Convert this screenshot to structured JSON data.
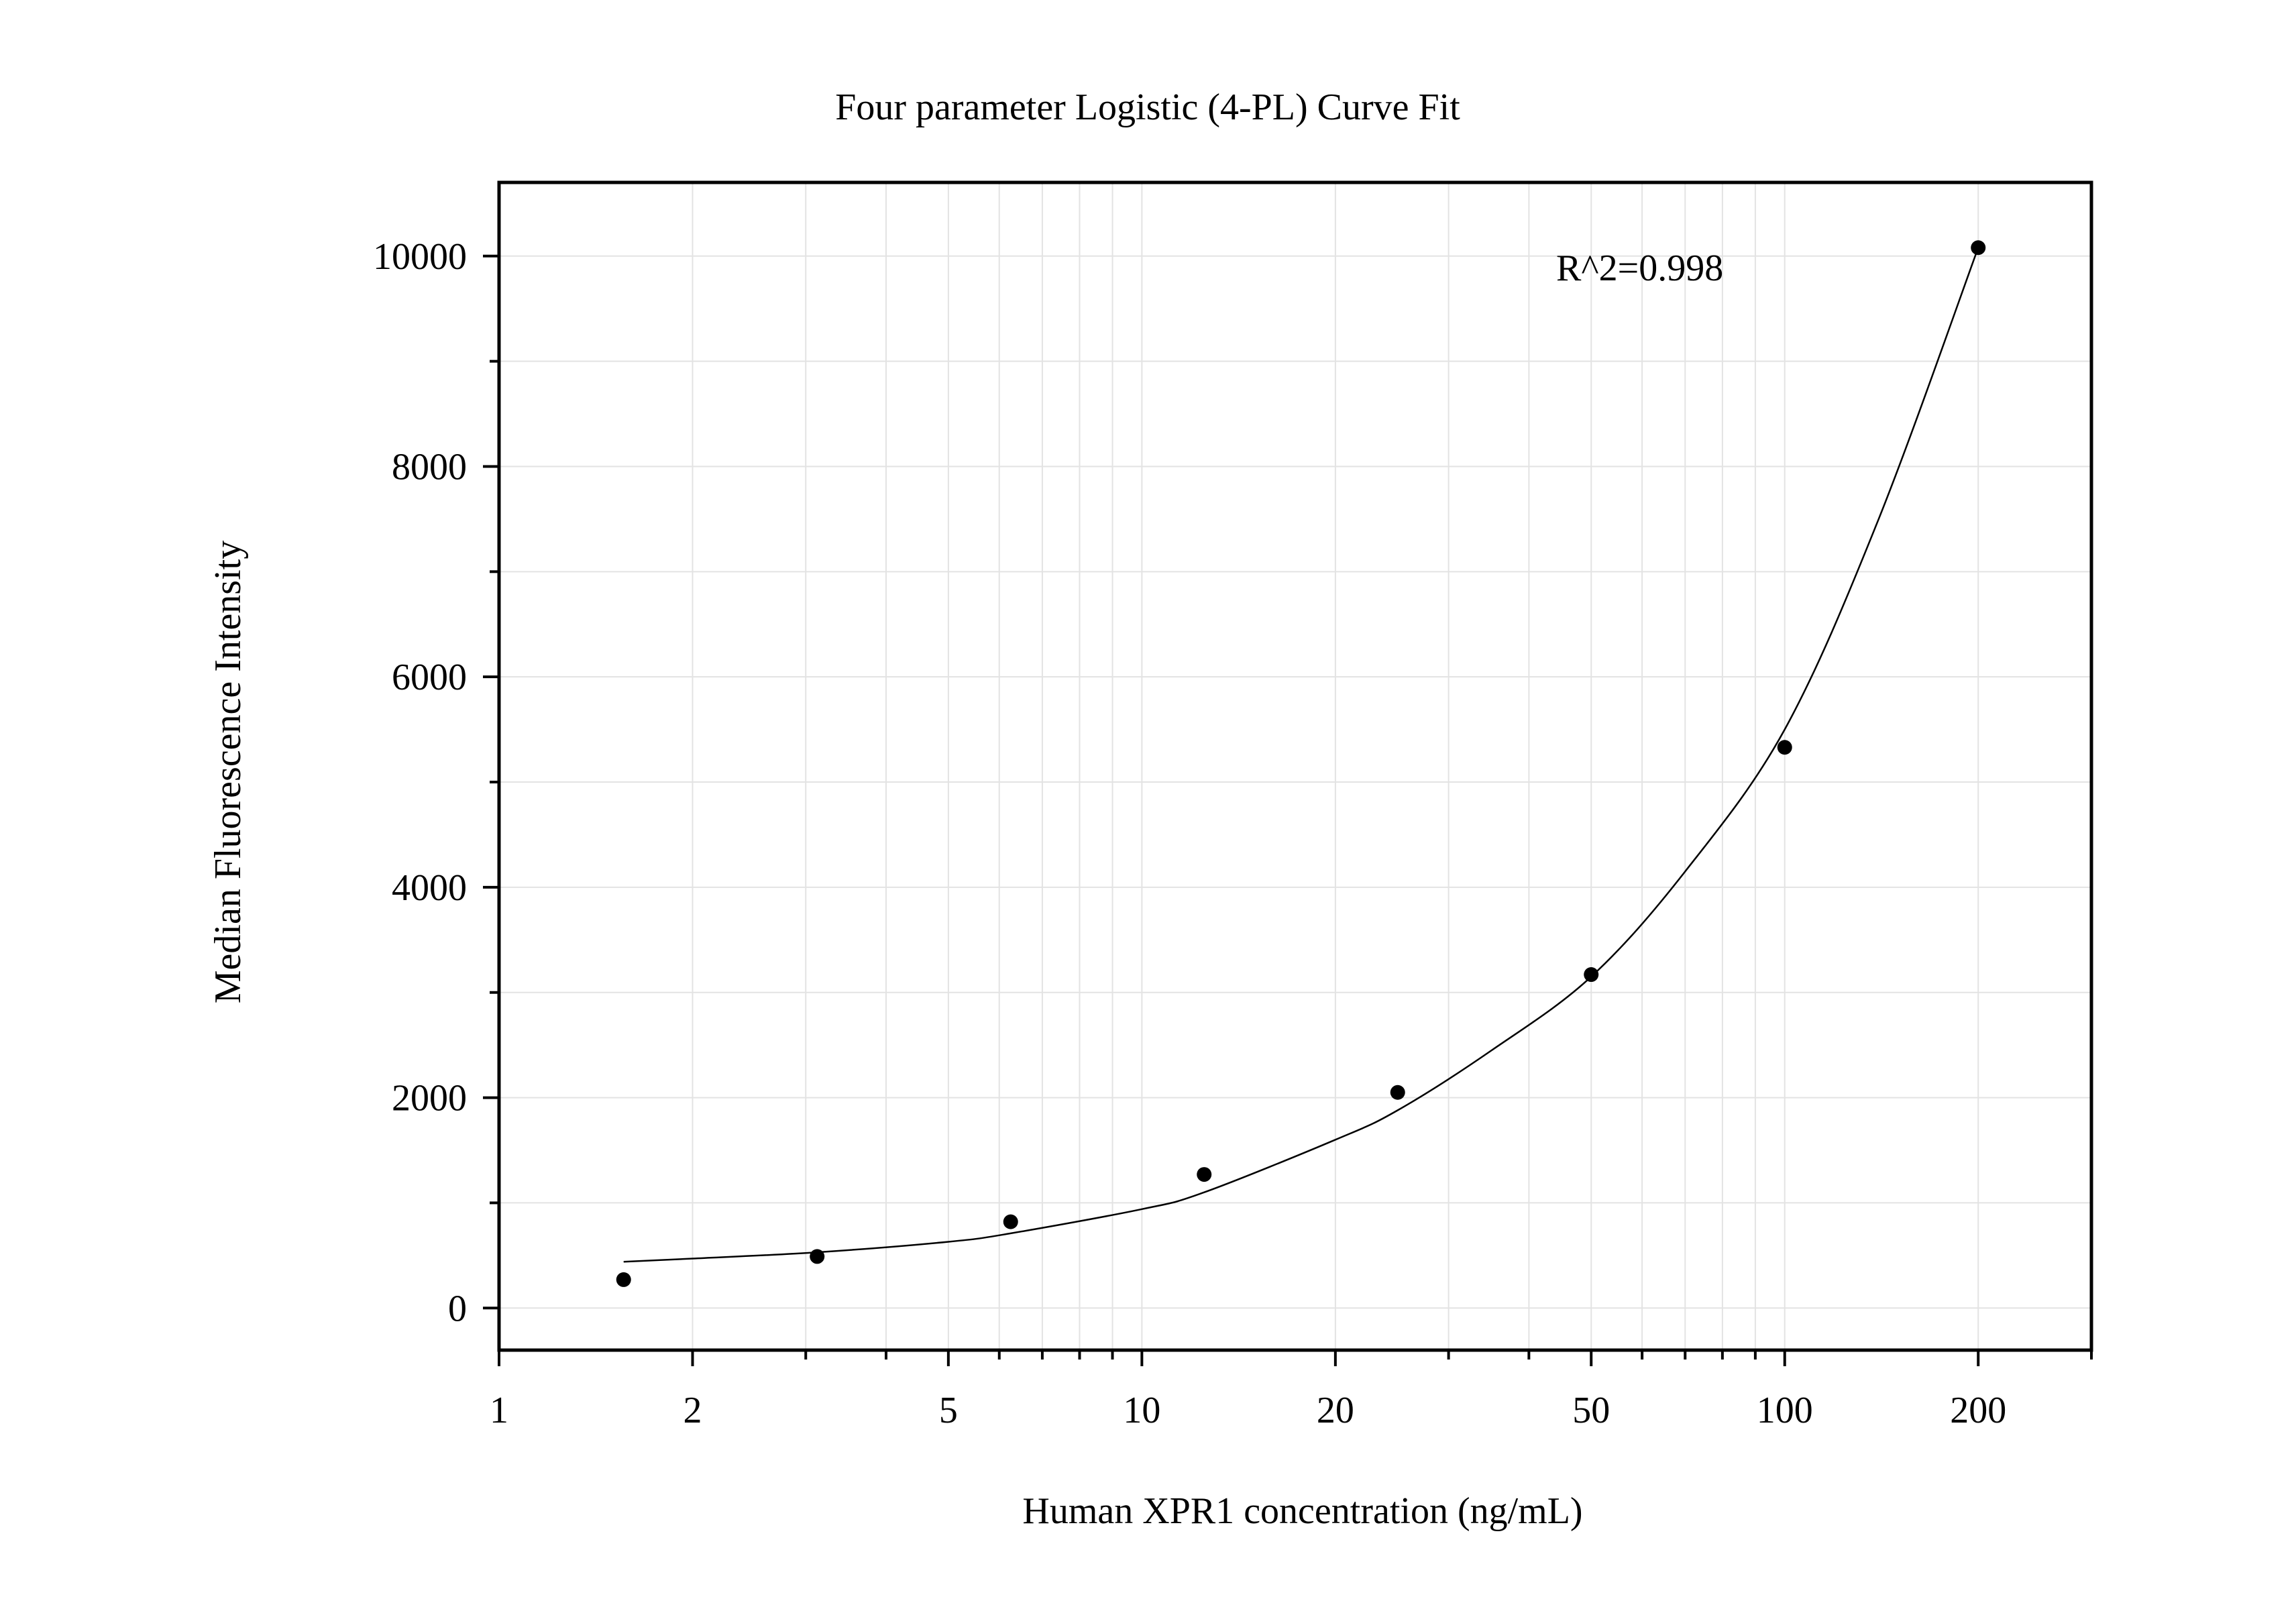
{
  "chart_data": {
    "type": "scatter",
    "title": "Four parameter Logistic (4-PL) Curve Fit",
    "xlabel": "Human XPR1 concentration (ng/mL)",
    "ylabel": "Median Fluorescence Intensity",
    "x_scale": "log",
    "xlim": [
      1,
      300
    ],
    "ylim": [
      -400,
      10700
    ],
    "x_ticks": [
      1,
      2,
      5,
      10,
      20,
      50,
      100,
      200
    ],
    "x_tick_labels": [
      "1",
      "2",
      "5",
      "10",
      "20",
      "50",
      "100",
      "200"
    ],
    "y_ticks": [
      0,
      2000,
      4000,
      6000,
      8000,
      10000
    ],
    "y_tick_labels": [
      "0",
      "2000",
      "4000",
      "6000",
      "8000",
      "10000"
    ],
    "grid": true,
    "annotation": "R^2=0.998",
    "series": [
      {
        "type": "scatter",
        "x": [
          1.5625,
          3.125,
          6.25,
          12.5,
          25,
          50,
          100,
          200
        ],
        "y": [
          270,
          490,
          820,
          1270,
          2050,
          3170,
          5330,
          10080
        ]
      }
    ],
    "fit_curve": {
      "type": "line",
      "x": [
        1.5625,
        2,
        3.125,
        5,
        6.25,
        10,
        12.5,
        20,
        25,
        35,
        50,
        70,
        100,
        140,
        200
      ],
      "y": [
        440,
        470,
        530,
        630,
        710,
        940,
        1100,
        1600,
        1880,
        2450,
        3150,
        4150,
        5500,
        7500,
        10080
      ]
    },
    "colors": {
      "points": "#000000",
      "curve": "#000000",
      "grid": "#e3e3e3",
      "axes": "#000000"
    }
  }
}
